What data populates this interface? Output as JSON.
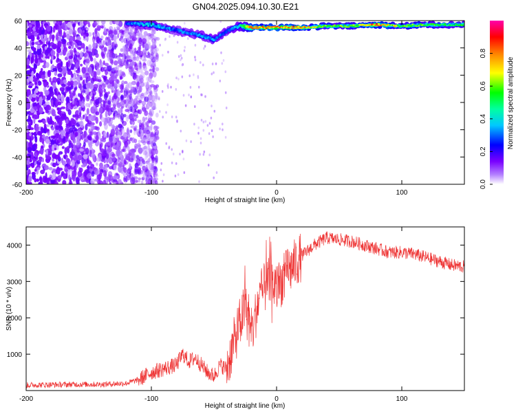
{
  "title": "GN04.2025.094.10.30.E21",
  "chart_data": [
    {
      "type": "heatmap",
      "title": "GN04.2025.094.10.30.E21",
      "xlabel": "Height of straight line (km)",
      "ylabel": "Frequency (Hz)",
      "xlim": [
        -200,
        150
      ],
      "ylim": [
        -60,
        60
      ],
      "x_ticks": [
        -200,
        -100,
        0,
        100
      ],
      "y_ticks": [
        -60,
        -40,
        -20,
        0,
        20,
        40,
        60
      ],
      "colorbar": {
        "label": "Normalized spectral amplitude",
        "range": [
          0,
          1
        ],
        "ticks": [
          0.0,
          0.2,
          0.4,
          0.6,
          0.8
        ],
        "tick_labels": [
          "0.0",
          "0.2",
          "0.4",
          "0.6",
          "0.8"
        ],
        "colormap": [
          "#ffffff",
          "#8a2be2",
          "#0000ff",
          "#00ffff",
          "#00ff00",
          "#ffff00",
          "#ff8000",
          "#ff0000",
          "#ff00aa"
        ]
      },
      "description_ridge": {
        "x": [
          -120,
          -100,
          -80,
          -60,
          -50,
          -40,
          -30,
          -20,
          0,
          20,
          40,
          60,
          80,
          100,
          120,
          150
        ],
        "frequency_hz": [
          58,
          57,
          53,
          49,
          46,
          52,
          56,
          55,
          55,
          55,
          56,
          56,
          57,
          56,
          57,
          57
        ],
        "peak_amplitude": [
          0.3,
          0.4,
          0.3,
          0.35,
          0.35,
          0.3,
          0.4,
          0.8,
          0.85,
          0.8,
          0.6,
          0.6,
          0.85,
          0.6,
          0.6,
          0.55
        ]
      },
      "noise_region": {
        "x_range": [
          -200,
          -95
        ],
        "amplitude_range": [
          0.05,
          0.15
        ]
      }
    },
    {
      "type": "line",
      "xlabel": "Height of straight line (km)",
      "ylabel": "SNR (10 * v/v)",
      "xlim": [
        -200,
        150
      ],
      "ylim": [
        0,
        4500
      ],
      "x_ticks": [
        -200,
        -100,
        0,
        100
      ],
      "y_ticks": [
        1000,
        2000,
        3000,
        4000
      ],
      "series": [
        {
          "color": "#ee3333",
          "x": [
            -200,
            -180,
            -160,
            -140,
            -120,
            -110,
            -100,
            -90,
            -80,
            -75,
            -70,
            -65,
            -60,
            -55,
            -50,
            -45,
            -40,
            -35,
            -30,
            -25,
            -20,
            -15,
            -10,
            -5,
            0,
            10,
            20,
            30,
            40,
            50,
            60,
            70,
            80,
            90,
            100,
            110,
            120,
            130,
            140,
            150
          ],
          "y": [
            150,
            160,
            170,
            170,
            200,
            300,
            500,
            600,
            700,
            1000,
            800,
            900,
            700,
            500,
            400,
            700,
            600,
            1200,
            1800,
            2300,
            1500,
            2400,
            2800,
            3000,
            2800,
            3300,
            3700,
            4000,
            4200,
            4150,
            4100,
            4000,
            3900,
            3800,
            3800,
            3750,
            3650,
            3550,
            3450,
            3400
          ]
        }
      ]
    }
  ]
}
